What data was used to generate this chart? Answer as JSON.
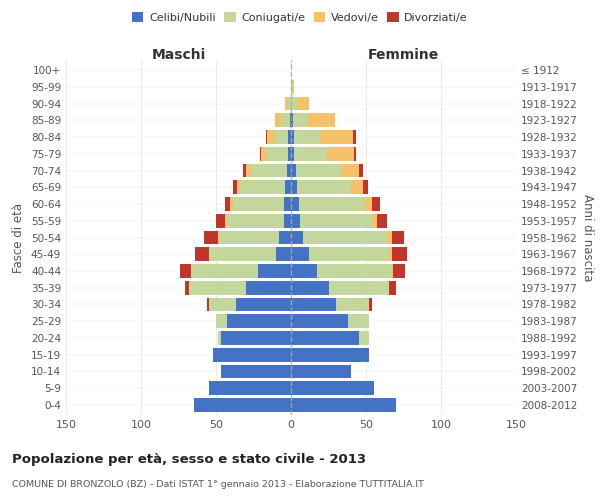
{
  "age_groups": [
    "0-4",
    "5-9",
    "10-14",
    "15-19",
    "20-24",
    "25-29",
    "30-34",
    "35-39",
    "40-44",
    "45-49",
    "50-54",
    "55-59",
    "60-64",
    "65-69",
    "70-74",
    "75-79",
    "80-84",
    "85-89",
    "90-94",
    "95-99",
    "100+"
  ],
  "birth_years": [
    "2008-2012",
    "2003-2007",
    "1998-2002",
    "1993-1997",
    "1988-1992",
    "1983-1987",
    "1978-1982",
    "1973-1977",
    "1968-1972",
    "1963-1967",
    "1958-1962",
    "1953-1957",
    "1948-1952",
    "1943-1947",
    "1938-1942",
    "1933-1937",
    "1928-1932",
    "1923-1927",
    "1918-1922",
    "1913-1917",
    "≤ 1912"
  ],
  "maschi_celibe": [
    65,
    55,
    47,
    52,
    47,
    43,
    37,
    30,
    22,
    10,
    8,
    5,
    5,
    4,
    3,
    2,
    2,
    1,
    0,
    0,
    0
  ],
  "maschi_coniugato": [
    0,
    0,
    0,
    0,
    2,
    7,
    18,
    38,
    45,
    45,
    40,
    38,
    34,
    30,
    24,
    15,
    9,
    6,
    2,
    0,
    0
  ],
  "maschi_vedovo": [
    0,
    0,
    0,
    0,
    0,
    0,
    0,
    0,
    0,
    0,
    1,
    1,
    2,
    2,
    3,
    3,
    5,
    4,
    2,
    0,
    0
  ],
  "maschi_divorziato": [
    0,
    0,
    0,
    0,
    0,
    0,
    1,
    3,
    7,
    9,
    9,
    6,
    3,
    3,
    2,
    1,
    1,
    0,
    0,
    0,
    0
  ],
  "femmine_nubile": [
    70,
    55,
    40,
    52,
    45,
    38,
    30,
    25,
    17,
    12,
    8,
    6,
    5,
    4,
    3,
    2,
    2,
    1,
    0,
    0,
    0
  ],
  "femmine_coniugata": [
    0,
    0,
    0,
    0,
    7,
    14,
    22,
    40,
    50,
    53,
    56,
    48,
    44,
    36,
    30,
    22,
    17,
    10,
    4,
    1,
    0
  ],
  "femmine_vedova": [
    0,
    0,
    0,
    0,
    0,
    0,
    0,
    0,
    1,
    2,
    3,
    3,
    5,
    8,
    12,
    18,
    22,
    18,
    8,
    1,
    0
  ],
  "femmine_divorziata": [
    0,
    0,
    0,
    0,
    0,
    0,
    2,
    5,
    8,
    10,
    8,
    7,
    5,
    3,
    3,
    1,
    2,
    0,
    0,
    0,
    0
  ],
  "color_celibe": "#4472c4",
  "color_coniugato": "#c3d69b",
  "color_vedovo": "#f5c26b",
  "color_divorziato": "#c0362c",
  "xlim": 150,
  "title": "Popolazione per età, sesso e stato civile - 2013",
  "subtitle": "COMUNE DI BRONZOLO (BZ) - Dati ISTAT 1° gennaio 2013 - Elaborazione TUTTITALIA.IT",
  "ylabel_left": "Fasce di età",
  "ylabel_right": "Anni di nascita",
  "label_maschi": "Maschi",
  "label_femmine": "Femmine",
  "legend_labels": [
    "Celibi/Nubili",
    "Coniugati/e",
    "Vedovi/e",
    "Divorziati/e"
  ],
  "bg_color": "#ffffff",
  "grid_color": "#cccccc"
}
